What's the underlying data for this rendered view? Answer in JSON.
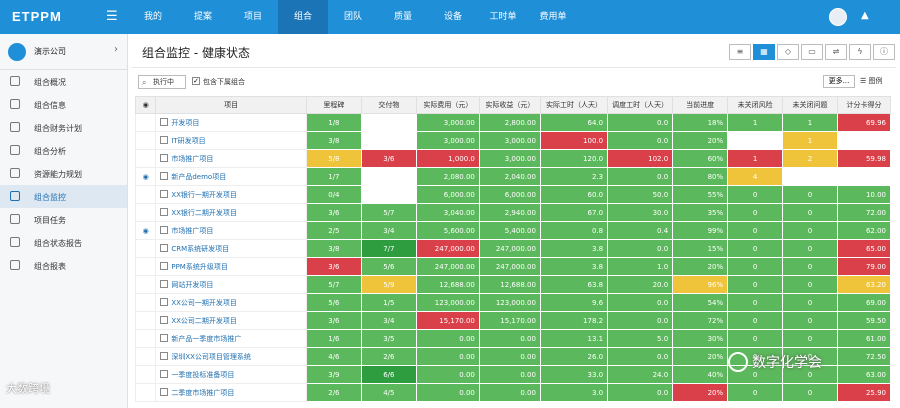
{
  "app": {
    "logo": "ETPPM"
  },
  "nav": [
    "我的",
    "提案",
    "项目",
    "组合",
    "团队",
    "质量",
    "设备",
    "工时单",
    "费用单"
  ],
  "sidebar": {
    "company": "演示公司",
    "items": [
      "组合概况",
      "组合信息",
      "组合财务计划",
      "组合分析",
      "资源能力规划",
      "组合监控",
      "项目任务",
      "组合状态报告",
      "组合报表"
    ]
  },
  "page": {
    "title": "组合监控 - 健康状态",
    "search_label": "执行中",
    "include_label": "包含下属组合",
    "more_label": "更多...",
    "chart_label": "图例"
  },
  "columns": [
    "",
    "项目",
    "里程碑",
    "交付物",
    "实际费用（元）",
    "实际收益（元）",
    "实际工时（人天）",
    "调度工时（人天）",
    "当前进度",
    "未关闭风险",
    "未关闭问题",
    "计分卡得分"
  ],
  "colors": {
    "green": "#5cb85c",
    "darkgreen": "#2e9d3f",
    "red": "#d9404a",
    "yellow": "#f0c43a",
    "white": "#ffffff",
    "brand": "#1f8fd8"
  },
  "rows": [
    {
      "eye": false,
      "name": "开发项目",
      "cells": [
        [
          "1/8",
          "g"
        ],
        [
          "",
          "w"
        ],
        [
          "3,000.00",
          "g"
        ],
        [
          "2,800.00",
          "g"
        ],
        [
          "64.0",
          "g"
        ],
        [
          "0.0",
          "g"
        ],
        [
          "18%",
          "g"
        ],
        [
          "1",
          "g"
        ],
        [
          "1",
          "g"
        ],
        [
          "69.96",
          "r"
        ]
      ]
    },
    {
      "eye": false,
      "name": "IT研发项目",
      "cells": [
        [
          "3/8",
          "g"
        ],
        [
          "",
          "w"
        ],
        [
          "3,000.00",
          "g"
        ],
        [
          "3,000.00",
          "g"
        ],
        [
          "100.0",
          "r"
        ],
        [
          "0.0",
          "g"
        ],
        [
          "20%",
          "g"
        ],
        [
          "",
          "w"
        ],
        [
          "1",
          "y"
        ],
        [
          "",
          "w"
        ]
      ]
    },
    {
      "eye": false,
      "name": "市场推广项目",
      "cells": [
        [
          "5/8",
          "y"
        ],
        [
          "3/6",
          "r"
        ],
        [
          "1,000.0",
          "r"
        ],
        [
          "3,000.00",
          "g"
        ],
        [
          "120.0",
          "g"
        ],
        [
          "102.0",
          "r"
        ],
        [
          "60%",
          "g"
        ],
        [
          "1",
          "r"
        ],
        [
          "2",
          "y"
        ],
        [
          "59.98",
          "r"
        ]
      ]
    },
    {
      "eye": true,
      "name": "新产品demo项目",
      "cells": [
        [
          "1/7",
          "g"
        ],
        [
          "",
          "w"
        ],
        [
          "2,080.00",
          "g"
        ],
        [
          "2,040.00",
          "g"
        ],
        [
          "2.3",
          "g"
        ],
        [
          "0.0",
          "g"
        ],
        [
          "80%",
          "g"
        ],
        [
          "4",
          "y"
        ],
        [
          "",
          "w"
        ],
        [
          "",
          "w"
        ]
      ]
    },
    {
      "eye": false,
      "name": "XX银行一期开发项目",
      "cells": [
        [
          "0/4",
          "g"
        ],
        [
          "",
          "w"
        ],
        [
          "6,000.00",
          "g"
        ],
        [
          "6,000.00",
          "g"
        ],
        [
          "60.0",
          "g"
        ],
        [
          "50.0",
          "g"
        ],
        [
          "55%",
          "g"
        ],
        [
          "0",
          "g"
        ],
        [
          "0",
          "g"
        ],
        [
          "10.00",
          "g"
        ]
      ]
    },
    {
      "eye": false,
      "name": "XX银行二期开发项目",
      "cells": [
        [
          "3/6",
          "g"
        ],
        [
          "5/7",
          "g"
        ],
        [
          "3,040.00",
          "g"
        ],
        [
          "2,940.00",
          "g"
        ],
        [
          "67.0",
          "g"
        ],
        [
          "30.0",
          "g"
        ],
        [
          "35%",
          "g"
        ],
        [
          "0",
          "g"
        ],
        [
          "0",
          "g"
        ],
        [
          "72.00",
          "g"
        ]
      ]
    },
    {
      "eye": true,
      "name": "市场推广项目",
      "cells": [
        [
          "2/5",
          "g"
        ],
        [
          "3/4",
          "g"
        ],
        [
          "5,600.00",
          "g"
        ],
        [
          "5,400.00",
          "g"
        ],
        [
          "0.8",
          "g"
        ],
        [
          "0.4",
          "g"
        ],
        [
          "99%",
          "g"
        ],
        [
          "0",
          "g"
        ],
        [
          "0",
          "g"
        ],
        [
          "62.00",
          "g"
        ]
      ]
    },
    {
      "eye": false,
      "name": "CRM系统研发项目",
      "cells": [
        [
          "3/8",
          "g"
        ],
        [
          "7/7",
          "dg"
        ],
        [
          "247,000.00",
          "r"
        ],
        [
          "247,000.00",
          "g"
        ],
        [
          "3.8",
          "g"
        ],
        [
          "0.0",
          "g"
        ],
        [
          "15%",
          "g"
        ],
        [
          "0",
          "g"
        ],
        [
          "0",
          "g"
        ],
        [
          "65.00",
          "r"
        ]
      ]
    },
    {
      "eye": false,
      "name": "PPM系统升级项目",
      "cells": [
        [
          "3/6",
          "r"
        ],
        [
          "5/6",
          "g"
        ],
        [
          "247,000.00",
          "g"
        ],
        [
          "247,000.00",
          "g"
        ],
        [
          "3.8",
          "g"
        ],
        [
          "1.0",
          "g"
        ],
        [
          "20%",
          "g"
        ],
        [
          "0",
          "g"
        ],
        [
          "0",
          "g"
        ],
        [
          "79.00",
          "r"
        ]
      ]
    },
    {
      "eye": false,
      "name": "网站开发项目",
      "cells": [
        [
          "5/7",
          "g"
        ],
        [
          "5/9",
          "y"
        ],
        [
          "12,688.00",
          "g"
        ],
        [
          "12,688.00",
          "g"
        ],
        [
          "63.8",
          "g"
        ],
        [
          "20.0",
          "g"
        ],
        [
          "96%",
          "y"
        ],
        [
          "0",
          "g"
        ],
        [
          "0",
          "g"
        ],
        [
          "63.20",
          "y"
        ]
      ]
    },
    {
      "eye": false,
      "name": "XX公司一期开发项目",
      "cells": [
        [
          "5/6",
          "g"
        ],
        [
          "1/5",
          "g"
        ],
        [
          "123,000.00",
          "g"
        ],
        [
          "123,000.00",
          "g"
        ],
        [
          "9.6",
          "g"
        ],
        [
          "0.0",
          "g"
        ],
        [
          "54%",
          "g"
        ],
        [
          "0",
          "g"
        ],
        [
          "0",
          "g"
        ],
        [
          "69.00",
          "g"
        ]
      ]
    },
    {
      "eye": false,
      "name": "XX公司二期开发项目",
      "cells": [
        [
          "3/6",
          "g"
        ],
        [
          "3/4",
          "g"
        ],
        [
          "15,170.00",
          "r"
        ],
        [
          "15,170.00",
          "g"
        ],
        [
          "178.2",
          "g"
        ],
        [
          "0.0",
          "g"
        ],
        [
          "72%",
          "g"
        ],
        [
          "0",
          "g"
        ],
        [
          "0",
          "g"
        ],
        [
          "59.50",
          "g"
        ]
      ]
    },
    {
      "eye": false,
      "name": "新产品一季度市场推广",
      "cells": [
        [
          "1/6",
          "g"
        ],
        [
          "3/5",
          "g"
        ],
        [
          "0.00",
          "g"
        ],
        [
          "0.00",
          "g"
        ],
        [
          "13.1",
          "g"
        ],
        [
          "5.0",
          "g"
        ],
        [
          "30%",
          "g"
        ],
        [
          "0",
          "g"
        ],
        [
          "0",
          "g"
        ],
        [
          "61.00",
          "g"
        ]
      ]
    },
    {
      "eye": false,
      "name": "深圳XX公司项目管理系统",
      "cells": [
        [
          "4/6",
          "g"
        ],
        [
          "2/6",
          "g"
        ],
        [
          "0.00",
          "g"
        ],
        [
          "0.00",
          "g"
        ],
        [
          "26.0",
          "g"
        ],
        [
          "0.0",
          "g"
        ],
        [
          "20%",
          "g"
        ],
        [
          "0",
          "g"
        ],
        [
          "0",
          "g"
        ],
        [
          "72.50",
          "g"
        ]
      ]
    },
    {
      "eye": false,
      "name": "一季度投标准备项目",
      "cells": [
        [
          "3/9",
          "g"
        ],
        [
          "6/6",
          "dg"
        ],
        [
          "0.00",
          "g"
        ],
        [
          "0.00",
          "g"
        ],
        [
          "33.0",
          "g"
        ],
        [
          "24.0",
          "g"
        ],
        [
          "40%",
          "g"
        ],
        [
          "0",
          "g"
        ],
        [
          "0",
          "g"
        ],
        [
          "63.00",
          "g"
        ]
      ]
    },
    {
      "eye": false,
      "name": "二季度市场推广项目",
      "cells": [
        [
          "2/6",
          "g"
        ],
        [
          "4/5",
          "g"
        ],
        [
          "0.00",
          "g"
        ],
        [
          "0.00",
          "g"
        ],
        [
          "3.0",
          "g"
        ],
        [
          "0.0",
          "g"
        ],
        [
          "20%",
          "r"
        ],
        [
          "0",
          "g"
        ],
        [
          "0",
          "g"
        ],
        [
          "25.90",
          "r"
        ]
      ]
    }
  ],
  "watermarks": {
    "left": "大数跨境",
    "right": "数字化学会"
  }
}
